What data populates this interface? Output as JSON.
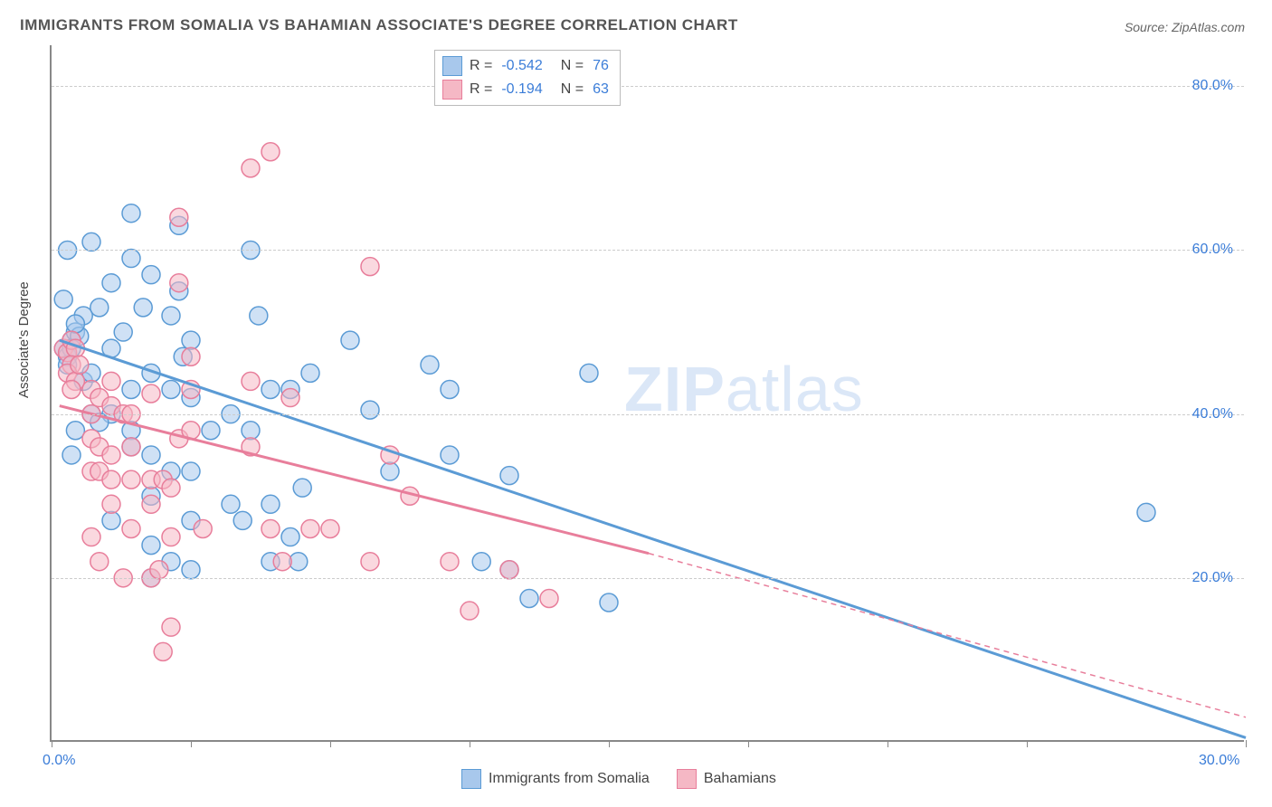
{
  "title": "IMMIGRANTS FROM SOMALIA VS BAHAMIAN ASSOCIATE'S DEGREE CORRELATION CHART",
  "source_label": "Source:",
  "source_name": "ZipAtlas.com",
  "ylabel": "Associate's Degree",
  "watermark_bold": "ZIP",
  "watermark_rest": "atlas",
  "chart": {
    "type": "scatter",
    "xlim": [
      0,
      30
    ],
    "ylim": [
      0,
      85
    ],
    "xtick_positions": [
      0,
      3.5,
      7,
      10.5,
      14,
      17.5,
      21,
      24.5,
      30
    ],
    "xtick_labels_shown": {
      "0": "0.0%",
      "30": "30.0%"
    },
    "ytick_positions": [
      20,
      40,
      60,
      80
    ],
    "ytick_labels": [
      "20.0%",
      "40.0%",
      "60.0%",
      "80.0%"
    ],
    "background_color": "#ffffff",
    "grid_color": "#cccccc",
    "axis_color": "#888888",
    "label_color": "#3b7dd8",
    "marker_radius": 10,
    "marker_opacity": 0.55,
    "line_width": 3,
    "series": [
      {
        "name": "Immigrants from Somalia",
        "color_fill": "#a8c8ec",
        "color_stroke": "#5b9bd5",
        "R": "-0.542",
        "N": "76",
        "trend": {
          "x1": 0.2,
          "y1": 49,
          "x2": 30,
          "y2": 0.5
        },
        "points": [
          [
            0.3,
            48
          ],
          [
            0.5,
            49
          ],
          [
            0.6,
            50
          ],
          [
            0.4,
            47
          ],
          [
            0.7,
            49.5
          ],
          [
            0.5,
            48
          ],
          [
            0.8,
            52
          ],
          [
            0.4,
            46
          ],
          [
            0.6,
            51
          ],
          [
            0.3,
            54
          ],
          [
            0.4,
            60
          ],
          [
            1.0,
            61
          ],
          [
            1.5,
            56
          ],
          [
            2.0,
            64.5
          ],
          [
            2.0,
            59
          ],
          [
            2.3,
            53
          ],
          [
            2.5,
            57
          ],
          [
            3.0,
            52
          ],
          [
            3.2,
            63
          ],
          [
            3.2,
            55
          ],
          [
            3.3,
            47
          ],
          [
            5.0,
            60
          ],
          [
            5.2,
            52
          ],
          [
            3.5,
            49
          ],
          [
            1.5,
            48
          ],
          [
            1.2,
            53
          ],
          [
            1.8,
            50
          ],
          [
            2.5,
            45
          ],
          [
            2.0,
            43
          ],
          [
            3.0,
            43
          ],
          [
            1.0,
            40
          ],
          [
            1.5,
            40
          ],
          [
            2.0,
            38
          ],
          [
            3.5,
            42
          ],
          [
            4.0,
            38
          ],
          [
            4.5,
            40
          ],
          [
            5.0,
            38
          ],
          [
            5.5,
            43
          ],
          [
            6.0,
            43
          ],
          [
            6.5,
            45
          ],
          [
            2.5,
            35
          ],
          [
            2.0,
            36
          ],
          [
            3.0,
            33
          ],
          [
            3.5,
            33
          ],
          [
            2.5,
            30
          ],
          [
            4.5,
            29
          ],
          [
            3.5,
            27
          ],
          [
            4.8,
            27
          ],
          [
            5.5,
            29
          ],
          [
            5.5,
            22
          ],
          [
            6.0,
            25
          ],
          [
            6.2,
            22
          ],
          [
            6.3,
            31
          ],
          [
            3.0,
            22
          ],
          [
            3.5,
            21
          ],
          [
            2.5,
            24
          ],
          [
            1.5,
            27
          ],
          [
            2.5,
            20
          ],
          [
            7.5,
            49
          ],
          [
            8.0,
            40.5
          ],
          [
            8.5,
            33
          ],
          [
            9.5,
            46
          ],
          [
            10.0,
            43
          ],
          [
            10.0,
            35
          ],
          [
            10.8,
            22
          ],
          [
            11.5,
            32.5
          ],
          [
            11.5,
            21
          ],
          [
            12.0,
            17.5
          ],
          [
            13.5,
            45
          ],
          [
            14.0,
            17
          ],
          [
            27.5,
            28
          ],
          [
            0.8,
            44
          ],
          [
            1.0,
            45
          ],
          [
            1.2,
            39
          ],
          [
            0.6,
            38
          ],
          [
            0.5,
            35
          ]
        ]
      },
      {
        "name": "Bahamians",
        "color_fill": "#f5b8c5",
        "color_stroke": "#e87e9b",
        "R": "-0.194",
        "N": "63",
        "trend": {
          "x1": 0.2,
          "y1": 41,
          "x2": 15,
          "y2": 23
        },
        "trend_ext": {
          "x1": 15,
          "y1": 23,
          "x2": 30,
          "y2": 3
        },
        "points": [
          [
            0.3,
            48
          ],
          [
            0.4,
            47.5
          ],
          [
            0.5,
            49
          ],
          [
            0.6,
            48
          ],
          [
            0.5,
            46
          ],
          [
            0.4,
            45
          ],
          [
            0.6,
            44
          ],
          [
            0.7,
            46
          ],
          [
            0.5,
            43
          ],
          [
            1.0,
            43
          ],
          [
            1.0,
            40
          ],
          [
            1.2,
            42
          ],
          [
            1.5,
            44
          ],
          [
            1.5,
            41
          ],
          [
            1.8,
            40
          ],
          [
            2.0,
            40
          ],
          [
            2.5,
            42.5
          ],
          [
            3.2,
            64
          ],
          [
            3.2,
            56
          ],
          [
            3.5,
            47
          ],
          [
            3.5,
            43
          ],
          [
            5.0,
            70
          ],
          [
            5.5,
            72
          ],
          [
            5.0,
            44
          ],
          [
            1.0,
            37
          ],
          [
            1.2,
            36
          ],
          [
            1.5,
            35
          ],
          [
            2.0,
            36
          ],
          [
            1.0,
            33
          ],
          [
            1.2,
            33
          ],
          [
            1.5,
            32
          ],
          [
            2.0,
            32
          ],
          [
            2.5,
            32
          ],
          [
            2.8,
            32
          ],
          [
            3.0,
            31
          ],
          [
            3.2,
            37
          ],
          [
            3.5,
            38
          ],
          [
            3.8,
            26
          ],
          [
            1.5,
            29
          ],
          [
            2.5,
            29
          ],
          [
            2.0,
            26
          ],
          [
            3.0,
            25
          ],
          [
            1.0,
            25
          ],
          [
            1.2,
            22
          ],
          [
            1.8,
            20
          ],
          [
            2.5,
            20
          ],
          [
            2.7,
            21
          ],
          [
            2.8,
            11
          ],
          [
            3.0,
            14
          ],
          [
            5.0,
            36
          ],
          [
            5.5,
            26
          ],
          [
            5.8,
            22
          ],
          [
            6.5,
            26
          ],
          [
            7.0,
            26
          ],
          [
            8.0,
            58
          ],
          [
            8.0,
            22
          ],
          [
            8.5,
            35
          ],
          [
            9.0,
            30
          ],
          [
            10.0,
            22
          ],
          [
            10.5,
            16
          ],
          [
            11.5,
            21
          ],
          [
            12.5,
            17.5
          ],
          [
            6.0,
            42
          ]
        ]
      }
    ]
  }
}
